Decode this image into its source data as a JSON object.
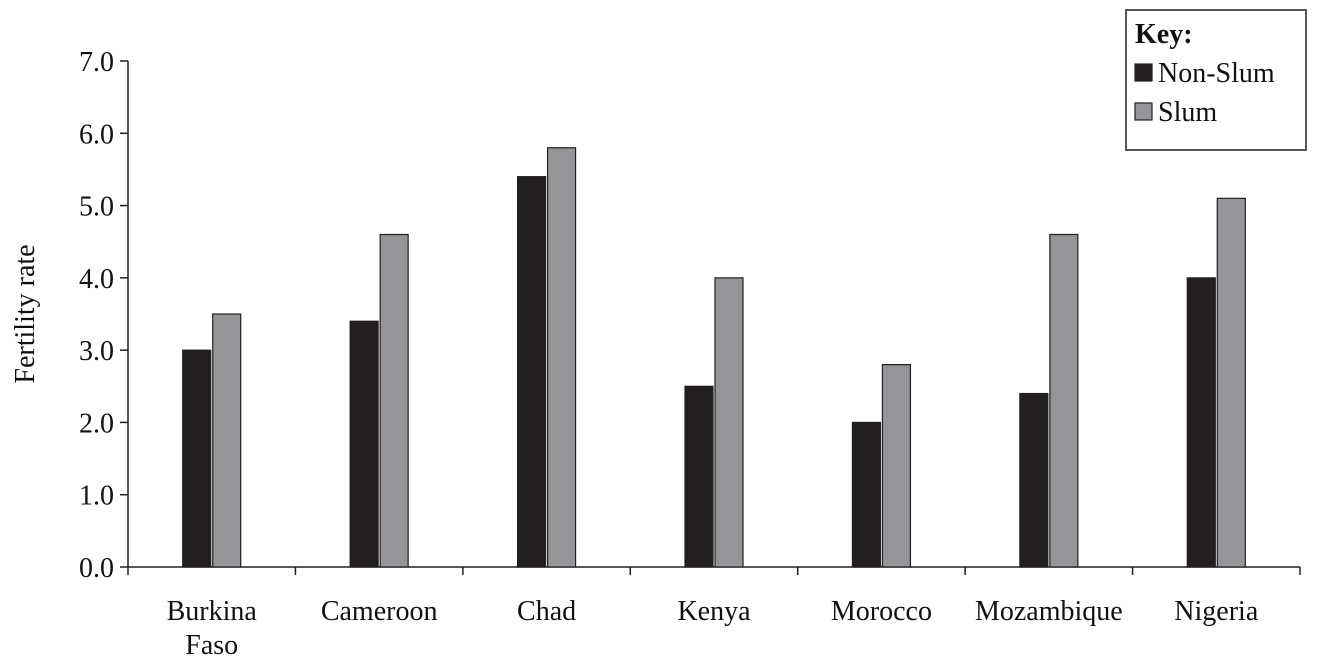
{
  "chart_data": {
    "type": "bar",
    "title": "",
    "xlabel": "",
    "ylabel": "Fertility rate",
    "ylim": [
      0,
      7
    ],
    "yticks": [
      "0.0",
      "1.0",
      "2.0",
      "3.0",
      "4.0",
      "5.0",
      "6.0",
      "7.0"
    ],
    "grid": false,
    "legend_position": "top-right",
    "legend_title": "Key:",
    "categories": [
      [
        "Burkina",
        "Faso"
      ],
      [
        "Cameroon"
      ],
      [
        "Chad"
      ],
      [
        "Kenya"
      ],
      [
        "Morocco"
      ],
      [
        "Mozambique"
      ],
      [
        "Nigeria"
      ]
    ],
    "series": [
      {
        "name": "Non-Slum",
        "color": "#231f20",
        "values": [
          3.0,
          3.4,
          5.4,
          2.5,
          2.0,
          2.4,
          4.0
        ]
      },
      {
        "name": "Slum",
        "color": "#939598",
        "values": [
          3.5,
          4.6,
          5.8,
          4.0,
          2.8,
          4.6,
          5.1
        ]
      }
    ]
  }
}
